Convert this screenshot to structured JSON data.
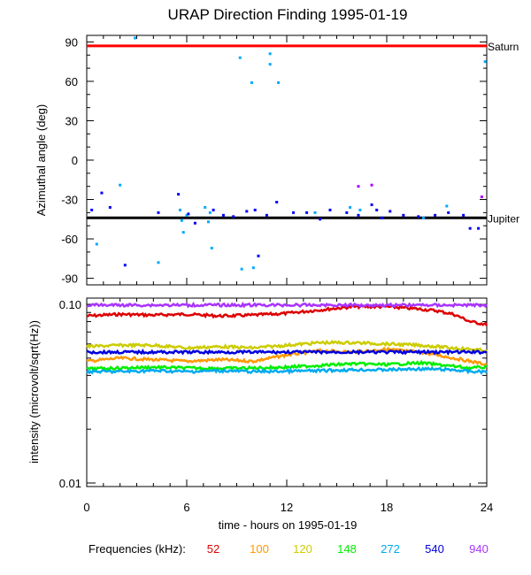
{
  "title": "URAP Direction Finding  1995-01-19",
  "xlabel": "time - hours on 1995-01-19",
  "legend_label": "Frequencies (kHz):",
  "chart_data": [
    {
      "type": "scatter",
      "ylabel": "Azimuthal angle (deg)",
      "xlim": [
        0,
        24
      ],
      "ylim": [
        -95,
        95
      ],
      "x_ticks": [
        0,
        6,
        12,
        18,
        24
      ],
      "y_ticks": [
        90,
        60,
        30,
        0,
        -30,
        -60,
        -90
      ],
      "reference_lines": [
        {
          "label": "Saturn",
          "y": 87,
          "color": "#ff0000"
        },
        {
          "label": "Jupiter",
          "y": -44,
          "color": "#000000"
        }
      ],
      "series": [
        {
          "freq": "272",
          "color": "#00aaff",
          "points": [
            [
              0.6,
              -64
            ],
            [
              2.0,
              -19
            ],
            [
              2.9,
              93
            ],
            [
              4.3,
              -78
            ],
            [
              5.6,
              -38
            ],
            [
              5.7,
              -46
            ],
            [
              5.8,
              -55
            ],
            [
              6.0,
              -42
            ],
            [
              7.1,
              -36
            ],
            [
              7.3,
              -47
            ],
            [
              7.4,
              -40
            ],
            [
              7.5,
              -67
            ],
            [
              9.2,
              78
            ],
            [
              9.3,
              -83
            ],
            [
              9.9,
              59
            ],
            [
              10.0,
              -82
            ],
            [
              11.0,
              81
            ],
            [
              11.0,
              73
            ],
            [
              11.5,
              59
            ],
            [
              13.7,
              -40
            ],
            [
              15.8,
              -36
            ],
            [
              16.4,
              -38
            ],
            [
              20.2,
              -44
            ],
            [
              21.6,
              -35
            ],
            [
              23.9,
              75
            ]
          ]
        },
        {
          "freq": "540",
          "color": "#0000ff",
          "points": [
            [
              0.3,
              -38
            ],
            [
              0.9,
              -25
            ],
            [
              1.4,
              -36
            ],
            [
              2.3,
              -80
            ],
            [
              4.3,
              -40
            ],
            [
              5.5,
              -26
            ],
            [
              6.1,
              -41
            ],
            [
              6.5,
              -48
            ],
            [
              7.6,
              -38
            ],
            [
              8.2,
              -42
            ],
            [
              8.8,
              -43
            ],
            [
              9.6,
              -39
            ],
            [
              10.1,
              -38
            ],
            [
              10.3,
              -73
            ],
            [
              10.8,
              -42
            ],
            [
              11.4,
              -32
            ],
            [
              12.4,
              -40
            ],
            [
              13.2,
              -40
            ],
            [
              14.0,
              -45
            ],
            [
              14.6,
              -38
            ],
            [
              15.6,
              -40
            ],
            [
              16.3,
              -42
            ],
            [
              17.1,
              -34
            ],
            [
              17.4,
              -38
            ],
            [
              17.7,
              -44
            ],
            [
              18.2,
              -39
            ],
            [
              19.0,
              -42
            ],
            [
              19.9,
              -43
            ],
            [
              20.9,
              -42
            ],
            [
              21.7,
              -40
            ],
            [
              22.6,
              -42
            ],
            [
              23.0,
              -52
            ],
            [
              23.5,
              -52
            ]
          ]
        },
        {
          "freq": "940",
          "color": "#aa00ff",
          "points": [
            [
              16.3,
              -20
            ],
            [
              17.1,
              -19
            ],
            [
              23.7,
              -28
            ]
          ]
        }
      ]
    },
    {
      "type": "line",
      "ylabel": "intensity (microvolt/sqrt(Hz))",
      "xlim": [
        0,
        24
      ],
      "ylim": [
        0.01,
        0.1
      ],
      "y_scale": "log",
      "x_ticks": [
        0,
        6,
        12,
        18,
        24
      ],
      "y_tick_labels": [
        "0.10",
        "0.01"
      ],
      "x_tick_labels": [
        "0",
        "6",
        "12",
        "18",
        "24"
      ],
      "series": [
        {
          "name": "52",
          "color": "#dd0000",
          "x": [
            0,
            2,
            4,
            6,
            8,
            10,
            12,
            14,
            16,
            18,
            20,
            21,
            22,
            23,
            24
          ],
          "y": [
            0.086,
            0.088,
            0.087,
            0.088,
            0.086,
            0.087,
            0.089,
            0.093,
            0.097,
            0.097,
            0.094,
            0.092,
            0.088,
            0.08,
            0.077
          ]
        },
        {
          "name": "100",
          "color": "#ff9900",
          "x": [
            0,
            2,
            4,
            6,
            8,
            10,
            12,
            14,
            16,
            18,
            20,
            21,
            22,
            23,
            24
          ],
          "y": [
            0.048,
            0.05,
            0.049,
            0.048,
            0.049,
            0.048,
            0.052,
            0.055,
            0.054,
            0.056,
            0.054,
            0.052,
            0.05,
            0.048,
            0.046
          ]
        },
        {
          "name": "120",
          "color": "#cccc00",
          "x": [
            0,
            2,
            4,
            6,
            8,
            10,
            12,
            14,
            16,
            18,
            20,
            22,
            23,
            24
          ],
          "y": [
            0.058,
            0.059,
            0.059,
            0.057,
            0.058,
            0.057,
            0.059,
            0.061,
            0.061,
            0.06,
            0.059,
            0.057,
            0.056,
            0.055
          ]
        },
        {
          "name": "148",
          "color": "#00ee00",
          "x": [
            0,
            2,
            4,
            6,
            8,
            10,
            12,
            14,
            16,
            18,
            20,
            22,
            23,
            24
          ],
          "y": [
            0.0435,
            0.044,
            0.0445,
            0.044,
            0.0438,
            0.044,
            0.0445,
            0.0455,
            0.0465,
            0.046,
            0.047,
            0.045,
            0.044,
            0.0445
          ]
        },
        {
          "name": "272",
          "color": "#00aaee",
          "x": [
            0,
            2,
            4,
            6,
            8,
            10,
            12,
            14,
            16,
            18,
            20,
            22,
            23,
            24
          ],
          "y": [
            0.042,
            0.042,
            0.0425,
            0.042,
            0.0425,
            0.042,
            0.0422,
            0.0425,
            0.043,
            0.043,
            0.0435,
            0.043,
            0.042,
            0.042
          ]
        },
        {
          "name": "540",
          "color": "#0000dd",
          "x": [
            0,
            2,
            4,
            6,
            8,
            10,
            12,
            14,
            16,
            18,
            20,
            22,
            24
          ],
          "y": [
            0.054,
            0.054,
            0.054,
            0.054,
            0.054,
            0.054,
            0.054,
            0.054,
            0.054,
            0.054,
            0.054,
            0.054,
            0.054
          ]
        },
        {
          "name": "940",
          "color": "#aa33ff",
          "x": [
            0,
            2,
            4,
            6,
            8,
            10,
            12,
            14,
            16,
            18,
            20,
            22,
            24
          ],
          "y": [
            0.099,
            0.099,
            0.099,
            0.099,
            0.099,
            0.099,
            0.099,
            0.099,
            0.099,
            0.099,
            0.099,
            0.099,
            0.099
          ]
        }
      ]
    }
  ]
}
